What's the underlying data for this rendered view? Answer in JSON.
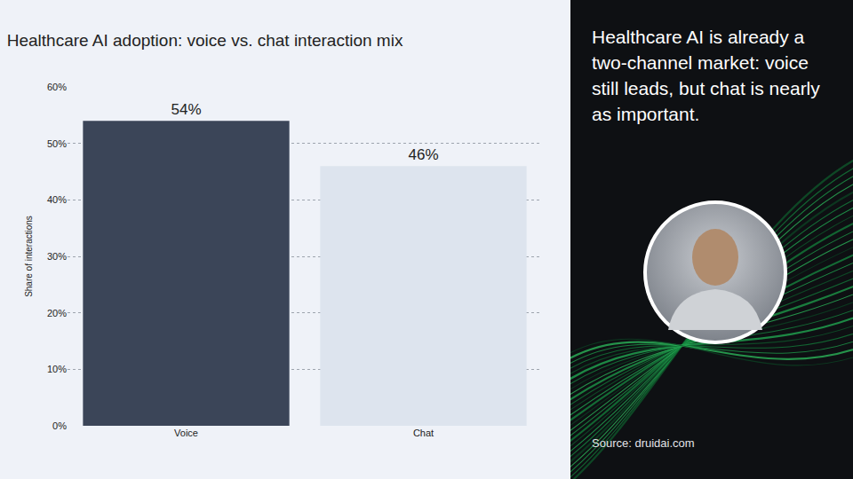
{
  "chart_data": {
    "type": "bar",
    "title": "Healthcare AI adoption: voice vs. chat interaction mix",
    "y_label": "Share of interactions",
    "categories": [
      "Voice",
      "Chat"
    ],
    "values": [
      54,
      46
    ],
    "value_labels": [
      "54%",
      "46%"
    ],
    "colors": [
      "#3b4558",
      "#dde4ee"
    ],
    "ylim": [
      0,
      60
    ],
    "yticks": [
      {
        "value": 0,
        "label": "0%"
      },
      {
        "value": 10,
        "label": "10%"
      },
      {
        "value": 20,
        "label": "20%"
      },
      {
        "value": 30,
        "label": "30%"
      },
      {
        "value": 40,
        "label": "40%"
      },
      {
        "value": 50,
        "label": "50%"
      },
      {
        "value": 60,
        "label": "60%"
      }
    ],
    "grid": true,
    "data_labels": true
  },
  "panel": {
    "headline": "Healthcare AI is already a two-channel market: voice still leads, but chat is nearly as important.",
    "source": "Source: druidai.com"
  }
}
